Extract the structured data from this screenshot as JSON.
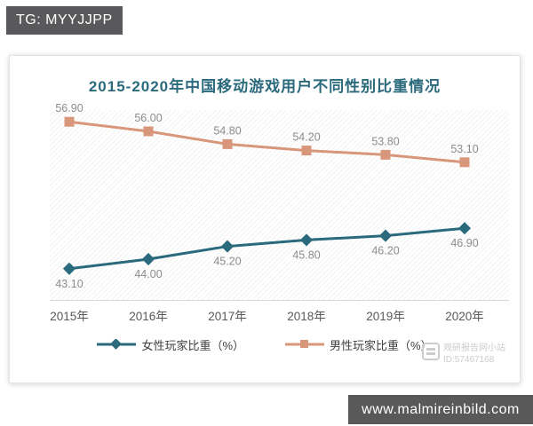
{
  "banners": {
    "top_left": "TG: MYYJJPP",
    "bottom_right": "www.malmireinbild.com"
  },
  "watermark": {
    "line1": "观研报告网小站",
    "line2": "ID:57467168"
  },
  "colors": {
    "title": "#2b6a7c",
    "female_series": "#2b6a7c",
    "male_series": "#d8967b",
    "value_label": "#8c8c8c",
    "tick_label": "#595959",
    "axis_line": "#d9d9d9",
    "banner_bg": "#595959"
  },
  "chart_data": {
    "type": "line",
    "title": "2015-2020年中国移动游戏用户不同性别比重情况",
    "categories": [
      "2015年",
      "2016年",
      "2017年",
      "2018年",
      "2019年",
      "2020年"
    ],
    "series": [
      {
        "name": "女性玩家比重（%）",
        "values": [
          43.1,
          44.0,
          45.2,
          45.8,
          46.2,
          46.9
        ],
        "color": "#2b6a7c",
        "marker": "diamond",
        "label_position": "below"
      },
      {
        "name": "男性玩家比重（%）",
        "values": [
          56.9,
          56.0,
          54.8,
          54.2,
          53.8,
          53.1
        ],
        "color": "#d8967b",
        "marker": "square",
        "label_position": "above"
      }
    ],
    "ylim": [
      40,
      58.5
    ],
    "xlabel": "",
    "ylabel": "",
    "grid": false,
    "legend_position": "bottom",
    "value_labels_shown": true,
    "value_label_decimals": 2
  }
}
